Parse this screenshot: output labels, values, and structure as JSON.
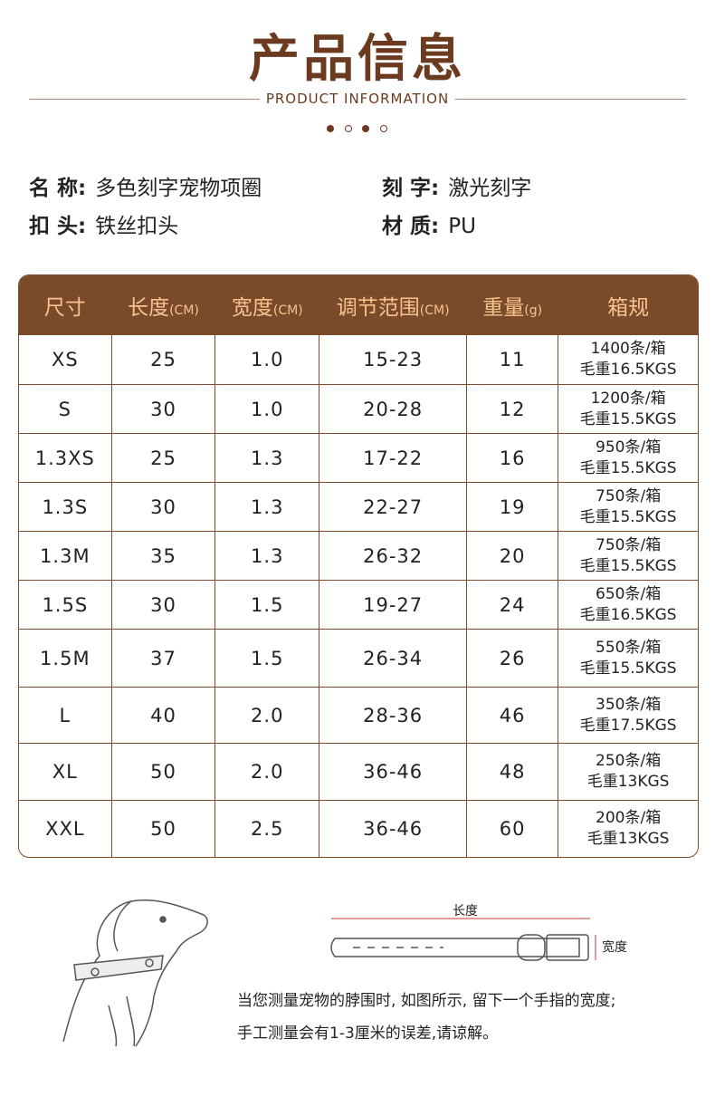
{
  "header": {
    "title": "产品信息",
    "subtitle": "PRODUCT INFORMATION"
  },
  "specs": [
    {
      "label": "名 称:",
      "value": "多色刻字宠物项圈"
    },
    {
      "label": "刻 字:",
      "value": "激光刻字"
    },
    {
      "label": "扣 头:",
      "value": "铁丝扣头"
    },
    {
      "label": "材 质:",
      "value": "PU"
    }
  ],
  "table": {
    "headers": [
      {
        "text": "尺寸"
      },
      {
        "text": "长度",
        "unit": "(CM)"
      },
      {
        "text": "宽度",
        "unit": "(CM)"
      },
      {
        "text": "调节范围",
        "unit": "(CM)"
      },
      {
        "text": "重量",
        "unit": "(g)"
      },
      {
        "text": "箱规"
      }
    ],
    "rows": [
      [
        "XS",
        "25",
        "1.0",
        "15-23",
        "11",
        [
          "1400条/箱",
          "毛重16.5KGS"
        ]
      ],
      [
        "S",
        "30",
        "1.0",
        "20-28",
        "12",
        [
          "1200条/箱",
          "毛重15.5KGS"
        ]
      ],
      [
        "1.3XS",
        "25",
        "1.3",
        "17-22",
        "16",
        [
          "950条/箱",
          "毛重15.5KGS"
        ]
      ],
      [
        "1.3S",
        "30",
        "1.3",
        "22-27",
        "19",
        [
          "750条/箱",
          "毛重15.5KGS"
        ]
      ],
      [
        "1.3M",
        "35",
        "1.3",
        "26-32",
        "20",
        [
          "750条/箱",
          "毛重15.5KGS"
        ]
      ],
      [
        "1.5S",
        "30",
        "1.5",
        "19-27",
        "24",
        [
          "650条/箱",
          "毛重16.5KGS"
        ]
      ],
      [
        "1.5M",
        "37",
        "1.5",
        "26-34",
        "26",
        [
          "550条/箱",
          "毛重15.5KGS"
        ]
      ],
      [
        "L",
        "40",
        "2.0",
        "28-36",
        "46",
        [
          "350条/箱",
          "毛重17.5KGS"
        ]
      ],
      [
        "XL",
        "50",
        "2.0",
        "36-46",
        "48",
        [
          "250条/箱",
          "毛重13KGS"
        ]
      ],
      [
        "XXL",
        "50",
        "2.5",
        "36-46",
        "60",
        [
          "200条/箱",
          "毛重13KGS"
        ]
      ]
    ]
  },
  "diagram": {
    "length_label": "长度",
    "width_label": "宽度"
  },
  "note": [
    "当您测量宠物的脖围时, 如图所示, 留下一个手指的宽度;",
    "手工测量会有1-3厘米的误差,请谅解。"
  ]
}
